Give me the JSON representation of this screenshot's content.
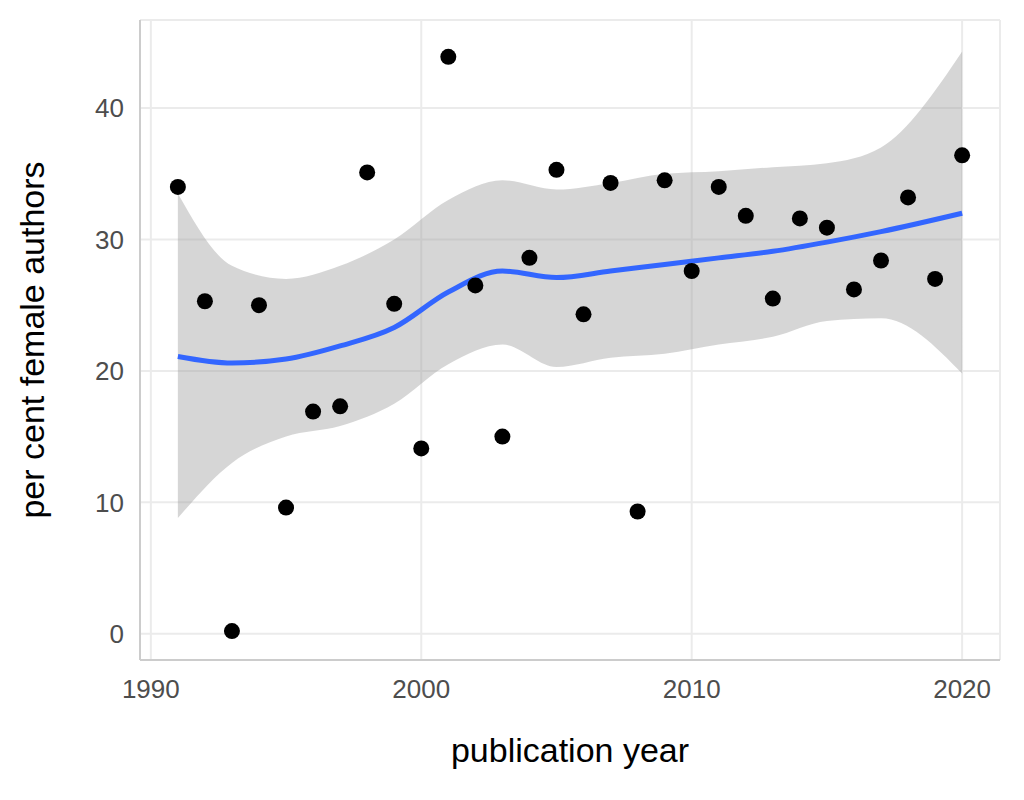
{
  "chart_data": {
    "type": "scatter",
    "x_label": "publication year",
    "y_label": "per cent female authors",
    "x": [
      1991,
      1992,
      1993,
      1994,
      1995,
      1996,
      1997,
      1998,
      1999,
      2000,
      2001,
      2002,
      2003,
      2004,
      2005,
      2006,
      2007,
      2008,
      2009,
      2010,
      2011,
      2012,
      2013,
      2014,
      2015,
      2016,
      2017,
      2018,
      2019,
      2020
    ],
    "values": [
      34,
      25.3,
      0.2,
      25,
      9.6,
      16.9,
      17.3,
      35.1,
      25.1,
      14.1,
      43.9,
      26.5,
      15,
      28.6,
      35.3,
      24.3,
      34.3,
      9.3,
      34.5,
      27.6,
      34,
      31.8,
      25.5,
      31.6,
      30.9,
      26.2,
      28.4,
      33.2,
      27,
      36.4
    ],
    "color": "#000000",
    "marker": "circle",
    "fit": {
      "x": [
        1991,
        1993,
        1995,
        1997,
        1999,
        2001,
        2003,
        2005,
        2007,
        2009,
        2011,
        2013,
        2015,
        2017,
        2020
      ],
      "values": [
        21.1,
        20.6,
        20.9,
        21.9,
        23.3,
        26,
        27.6,
        27.1,
        27.6,
        28.1,
        28.6,
        29.1,
        29.8,
        30.6,
        32
      ],
      "lower": [
        8.8,
        13,
        15,
        15.8,
        17.5,
        20.5,
        22,
        20.3,
        21,
        21.3,
        22,
        22.6,
        23.8,
        24,
        19.8
      ],
      "upper": [
        33.5,
        28,
        27,
        28,
        30,
        33,
        34.5,
        33.8,
        34.3,
        35,
        35.2,
        35.5,
        35.8,
        37,
        44.3
      ],
      "color": "#3366ff"
    },
    "xlim": [
      1989.6,
      2021.4
    ],
    "xticks": [
      1990,
      2000,
      2010,
      2020
    ],
    "ylim": [
      -2,
      46.7
    ],
    "yticks": [
      0,
      10,
      20,
      30,
      40
    ],
    "grid": true
  }
}
